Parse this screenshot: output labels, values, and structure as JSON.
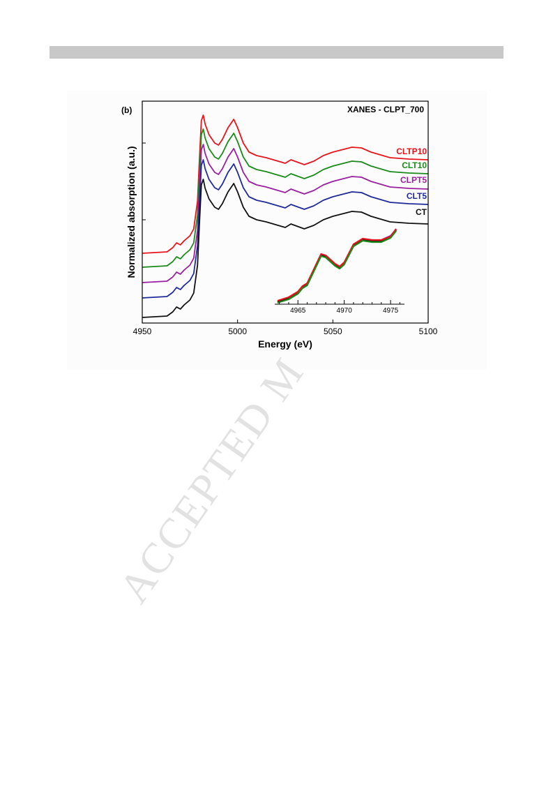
{
  "watermark": "ACCEPTED M",
  "chart_data": [
    {
      "type": "line",
      "panel_label": "(b)",
      "title": "XANES - CLPT_700",
      "xlabel": "Energy (eV)",
      "ylabel": "Normalized absorption (a.u.)",
      "xlim": [
        4950,
        5100
      ],
      "xticks": [
        4950,
        5000,
        5050,
        5100
      ],
      "ylim": [
        0,
        3.18
      ],
      "yticks": [
        1.48,
        2.58
      ],
      "x": [
        4950,
        4963,
        4966,
        4968,
        4970,
        4972,
        4975,
        4977,
        4979,
        4980,
        4981,
        4982,
        4983,
        4985,
        4988,
        4990,
        4992,
        4995,
        4998,
        5000,
        5003,
        5006,
        5010,
        5015,
        5020,
        5025,
        5028,
        5031,
        5035,
        5040,
        5045,
        5050,
        5060,
        5065,
        5070,
        5080,
        5090,
        5100
      ],
      "series": [
        {
          "name": "CLTP10",
          "color": "#e8141b",
          "values": [
            1.0,
            1.02,
            1.08,
            1.15,
            1.12,
            1.18,
            1.25,
            1.35,
            1.75,
            2.35,
            2.9,
            2.98,
            2.85,
            2.7,
            2.58,
            2.55,
            2.63,
            2.8,
            2.92,
            2.8,
            2.58,
            2.45,
            2.4,
            2.37,
            2.33,
            2.29,
            2.34,
            2.31,
            2.27,
            2.32,
            2.4,
            2.45,
            2.52,
            2.51,
            2.45,
            2.37,
            2.35,
            2.34
          ]
        },
        {
          "name": "CLT10",
          "color": "#1a8a1a",
          "values": [
            0.8,
            0.82,
            0.88,
            0.95,
            0.92,
            0.98,
            1.05,
            1.15,
            1.55,
            2.15,
            2.7,
            2.78,
            2.65,
            2.5,
            2.38,
            2.35,
            2.43,
            2.6,
            2.72,
            2.6,
            2.38,
            2.25,
            2.2,
            2.17,
            2.13,
            2.09,
            2.14,
            2.11,
            2.07,
            2.12,
            2.2,
            2.25,
            2.32,
            2.31,
            2.25,
            2.17,
            2.15,
            2.14
          ]
        },
        {
          "name": "CLPT5",
          "color": "#9a1fa0",
          "values": [
            0.58,
            0.6,
            0.66,
            0.73,
            0.7,
            0.76,
            0.83,
            0.93,
            1.33,
            1.93,
            2.48,
            2.56,
            2.43,
            2.28,
            2.16,
            2.13,
            2.21,
            2.38,
            2.5,
            2.38,
            2.16,
            2.03,
            1.98,
            1.95,
            1.91,
            1.87,
            1.92,
            1.89,
            1.85,
            1.9,
            1.98,
            2.03,
            2.1,
            2.09,
            2.03,
            1.95,
            1.93,
            1.92
          ]
        },
        {
          "name": "CLT5",
          "color": "#1f2a9a",
          "values": [
            0.36,
            0.38,
            0.44,
            0.51,
            0.48,
            0.54,
            0.61,
            0.71,
            1.11,
            1.71,
            2.26,
            2.34,
            2.21,
            2.06,
            1.94,
            1.91,
            1.99,
            2.16,
            2.28,
            2.16,
            1.94,
            1.81,
            1.76,
            1.73,
            1.69,
            1.65,
            1.7,
            1.67,
            1.63,
            1.68,
            1.76,
            1.81,
            1.88,
            1.87,
            1.81,
            1.73,
            1.71,
            1.7
          ]
        },
        {
          "name": "CT",
          "color": "#111111",
          "values": [
            0.08,
            0.1,
            0.16,
            0.23,
            0.2,
            0.26,
            0.33,
            0.43,
            0.83,
            1.43,
            1.98,
            2.06,
            1.93,
            1.78,
            1.66,
            1.63,
            1.71,
            1.88,
            2.0,
            1.88,
            1.66,
            1.53,
            1.48,
            1.45,
            1.41,
            1.37,
            1.42,
            1.39,
            1.35,
            1.4,
            1.48,
            1.53,
            1.6,
            1.59,
            1.53,
            1.45,
            1.43,
            1.42
          ]
        }
      ]
    },
    {
      "type": "line",
      "xlim": [
        4962.5,
        4976.5
      ],
      "xticks": [
        4965,
        4970,
        4975
      ],
      "minor_xticks": [
        4963,
        4964,
        4966,
        4967,
        4968,
        4969,
        4971,
        4972,
        4973,
        4974,
        4976
      ],
      "ylim": [
        0,
        1.1
      ],
      "x": [
        4962.8,
        4964,
        4965,
        4965.5,
        4966,
        4967,
        4967.5,
        4968,
        4969,
        4969.5,
        4970,
        4971,
        4972,
        4973,
        4974,
        4975,
        4975.6
      ],
      "series": [
        {
          "color": "#1f2a9a",
          "values": [
            0.04,
            0.09,
            0.17,
            0.25,
            0.29,
            0.57,
            0.71,
            0.69,
            0.57,
            0.53,
            0.59,
            0.85,
            0.93,
            0.91,
            0.91,
            0.97,
            1.07
          ]
        },
        {
          "color": "#9a1fa0",
          "values": [
            0.04,
            0.09,
            0.17,
            0.25,
            0.29,
            0.57,
            0.71,
            0.69,
            0.57,
            0.53,
            0.59,
            0.85,
            0.93,
            0.91,
            0.92,
            0.98,
            1.07
          ]
        },
        {
          "color": "#111111",
          "values": [
            0.03,
            0.08,
            0.16,
            0.24,
            0.28,
            0.56,
            0.7,
            0.68,
            0.56,
            0.52,
            0.58,
            0.84,
            0.92,
            0.9,
            0.9,
            0.96,
            1.06
          ]
        },
        {
          "color": "#e8141b",
          "values": [
            0.05,
            0.1,
            0.18,
            0.26,
            0.3,
            0.58,
            0.72,
            0.7,
            0.58,
            0.54,
            0.6,
            0.86,
            0.94,
            0.92,
            0.92,
            0.97,
            1.08
          ]
        },
        {
          "color": "#1a8a1a",
          "values": [
            0.02,
            0.07,
            0.15,
            0.23,
            0.27,
            0.55,
            0.69,
            0.67,
            0.55,
            0.51,
            0.57,
            0.83,
            0.91,
            0.89,
            0.89,
            0.95,
            1.05
          ]
        }
      ]
    }
  ]
}
